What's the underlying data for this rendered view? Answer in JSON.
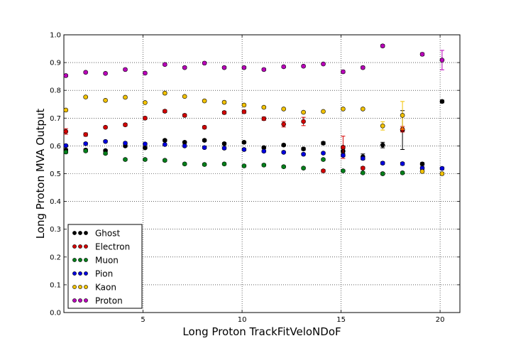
{
  "chart_data": {
    "type": "scatter",
    "xlabel": "Long Proton TrackFitVeloNDoF",
    "ylabel": "Long Proton MVA Output",
    "xlim": [
      1,
      21
    ],
    "ylim": [
      0.0,
      1.0
    ],
    "xticks": [
      5,
      10,
      15,
      20
    ],
    "yticks": [
      0.0,
      0.1,
      0.2,
      0.3,
      0.4,
      0.5,
      0.6,
      0.7,
      0.8,
      0.9,
      1.0
    ],
    "ytick_labels": [
      "0.0",
      "0.1",
      "0.2",
      "0.3",
      "0.4",
      "0.5",
      "0.6",
      "0.7",
      "0.8",
      "0.9",
      "1.0"
    ],
    "grid": true,
    "legend_position": "lower-left",
    "series": [
      {
        "name": "Ghost",
        "color": "#000000",
        "x": [
          1.1,
          2.1,
          3.1,
          4.1,
          5.1,
          6.1,
          7.1,
          8.1,
          9.1,
          10.1,
          11.1,
          12.1,
          13.1,
          14.1,
          15.1,
          16.1,
          17.1,
          18.1,
          19.1,
          20.1
        ],
        "y": [
          0.585,
          0.585,
          0.583,
          0.6,
          0.593,
          0.62,
          0.613,
          0.62,
          0.608,
          0.613,
          0.594,
          0.603,
          0.589,
          0.61,
          0.581,
          0.561,
          0.603,
          0.657,
          0.535,
          0.76
        ],
        "err": [
          0.005,
          0.004,
          0.004,
          0.004,
          0.004,
          0.004,
          0.004,
          0.004,
          0.004,
          0.004,
          0.004,
          0.004,
          0.005,
          0.005,
          0.008,
          0.01,
          0.01,
          0.07,
          0.005,
          0.005
        ]
      },
      {
        "name": "Electron",
        "color": "#d40000",
        "x": [
          1.1,
          2.1,
          3.1,
          4.1,
          5.1,
          6.1,
          7.1,
          8.1,
          9.1,
          10.1,
          11.1,
          12.1,
          13.1,
          14.1,
          15.1,
          16.1,
          17.1,
          18.1
        ],
        "y": [
          0.652,
          0.641,
          0.667,
          0.676,
          0.7,
          0.725,
          0.71,
          0.667,
          0.72,
          0.723,
          0.698,
          0.678,
          0.688,
          0.51,
          0.595,
          0.52,
          0.5,
          0.66
        ],
        "err": [
          0.01,
          0.006,
          0.004,
          0.005,
          0.005,
          0.005,
          0.005,
          0.005,
          0.005,
          0.006,
          0.006,
          0.01,
          0.015,
          0.005,
          0.04,
          0.005,
          0.004,
          0.01
        ]
      },
      {
        "name": "Muon",
        "color": "#00801a",
        "x": [
          1.1,
          2.1,
          3.1,
          4.1,
          5.1,
          6.1,
          7.1,
          8.1,
          9.1,
          10.1,
          11.1,
          12.1,
          13.1,
          14.1,
          15.1,
          16.1,
          17.1,
          18.1
        ],
        "y": [
          0.578,
          0.582,
          0.573,
          0.551,
          0.551,
          0.548,
          0.535,
          0.533,
          0.535,
          0.528,
          0.531,
          0.525,
          0.52,
          0.551,
          0.51,
          0.503,
          0.5,
          0.503
        ],
        "err": [
          0.005,
          0.004,
          0.004,
          0.004,
          0.004,
          0.004,
          0.004,
          0.004,
          0.004,
          0.004,
          0.004,
          0.004,
          0.004,
          0.004,
          0.004,
          0.004,
          0.004,
          0.004
        ]
      },
      {
        "name": "Pion",
        "color": "#0000e0",
        "x": [
          1.1,
          2.1,
          3.1,
          4.1,
          5.1,
          6.1,
          7.1,
          8.1,
          9.1,
          10.1,
          11.1,
          12.1,
          13.1,
          14.1,
          15.1,
          16.1,
          17.1,
          18.1,
          19.1,
          20.1
        ],
        "y": [
          0.601,
          0.608,
          0.616,
          0.61,
          0.607,
          0.605,
          0.6,
          0.594,
          0.592,
          0.587,
          0.581,
          0.577,
          0.57,
          0.574,
          0.566,
          0.555,
          0.538,
          0.536,
          0.52,
          0.519
        ],
        "err": [
          0.004,
          0.004,
          0.004,
          0.004,
          0.004,
          0.004,
          0.004,
          0.004,
          0.004,
          0.004,
          0.004,
          0.004,
          0.004,
          0.004,
          0.005,
          0.005,
          0.005,
          0.005,
          0.005,
          0.005
        ]
      },
      {
        "name": "Kaon",
        "color": "#f2c200",
        "x": [
          1.1,
          2.1,
          3.1,
          4.1,
          5.1,
          6.1,
          7.1,
          8.1,
          9.1,
          10.1,
          11.1,
          12.1,
          13.1,
          14.1,
          15.1,
          16.1,
          17.1,
          18.1,
          19.1,
          20.1
        ],
        "y": [
          0.729,
          0.776,
          0.764,
          0.775,
          0.756,
          0.79,
          0.778,
          0.762,
          0.757,
          0.747,
          0.739,
          0.733,
          0.721,
          0.724,
          0.733,
          0.733,
          0.672,
          0.71,
          0.508,
          0.5
        ],
        "err": [
          0.004,
          0.004,
          0.004,
          0.004,
          0.004,
          0.004,
          0.004,
          0.004,
          0.004,
          0.004,
          0.004,
          0.004,
          0.004,
          0.004,
          0.004,
          0.004,
          0.015,
          0.05,
          0.004,
          0.004
        ]
      },
      {
        "name": "Proton",
        "color": "#bb00bb",
        "x": [
          1.1,
          2.1,
          3.1,
          4.1,
          5.1,
          6.1,
          7.1,
          8.1,
          9.1,
          10.1,
          11.1,
          12.1,
          13.1,
          14.1,
          15.1,
          16.1,
          17.1,
          19.1,
          20.1
        ],
        "y": [
          0.853,
          0.865,
          0.861,
          0.875,
          0.862,
          0.893,
          0.882,
          0.898,
          0.882,
          0.882,
          0.875,
          0.885,
          0.887,
          0.895,
          0.867,
          0.882,
          0.96,
          0.93,
          0.909
        ],
        "err": [
          0.004,
          0.004,
          0.004,
          0.004,
          0.004,
          0.004,
          0.004,
          0.004,
          0.004,
          0.004,
          0.004,
          0.004,
          0.004,
          0.004,
          0.005,
          0.005,
          0.005,
          0.005,
          0.035
        ]
      }
    ]
  }
}
